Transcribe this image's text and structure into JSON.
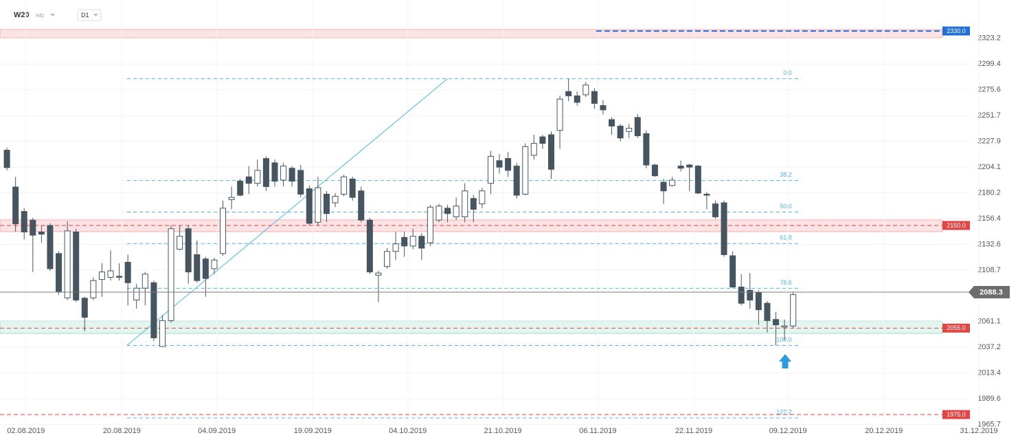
{
  "header": {
    "symbol": "W20",
    "market": "IND",
    "interval": "D1"
  },
  "chart_data": {
    "type": "candlestick",
    "candles": {
      "open": [
        2219.7,
        2185.6,
        2163,
        2155,
        2144,
        2150,
        2124,
        2083,
        2144,
        2082.7,
        2083,
        2100,
        2102,
        2103,
        2116,
        2081,
        2092,
        2097,
        2038,
        2062,
        2128,
        2147,
        2123,
        2119,
        2110,
        2124,
        2174,
        2191,
        2195,
        2189,
        2212,
        2208,
        2192,
        2203,
        2201,
        2184,
        2153,
        2179,
        2171,
        2179,
        2193,
        2182,
        2155,
        2104,
        2112,
        2126,
        2139,
        2131,
        2140,
        2134,
        2155,
        2166,
        2158,
        2158,
        2175,
        2170,
        2189,
        2210,
        2212,
        2205,
        2179,
        2215,
        2232,
        2234,
        2238,
        2274,
        2270,
        2271,
        2274,
        2261,
        2248,
        2242,
        2237,
        2250,
        2235,
        2206,
        2190,
        2187,
        2205,
        2206,
        2205,
        2179,
        2170,
        2171,
        2122,
        2093,
        2090,
        2088,
        2078,
        2063,
        2056,
        2057
      ],
      "high": [
        2222,
        2195,
        2166,
        2157,
        2150,
        2152,
        2126,
        2154,
        2147,
        2084,
        2102,
        2115,
        2127,
        2115,
        2123,
        2096,
        2107,
        2099,
        2067,
        2150,
        2150,
        2150,
        2136,
        2121,
        2120,
        2173,
        2186,
        2193,
        2205,
        2211,
        2214,
        2211,
        2208,
        2205,
        2206,
        2187,
        2195,
        2182,
        2180,
        2197,
        2195,
        2186,
        2157,
        2108,
        2129,
        2144,
        2144,
        2147,
        2143,
        2169,
        2170,
        2169,
        2176,
        2189,
        2178,
        2185,
        2219,
        2216,
        2218,
        2208,
        2226,
        2234,
        2234,
        2237,
        2270,
        2286,
        2274,
        2283,
        2277,
        2266,
        2250,
        2244,
        2244,
        2253,
        2238,
        2207,
        2193,
        2195,
        2210,
        2207,
        2206,
        2181,
        2173,
        2173,
        2126,
        2105,
        2106,
        2090,
        2080,
        2070,
        2063,
        2088
      ],
      "low": [
        2201,
        2144,
        2137,
        2107,
        2134,
        2108,
        2086,
        2081,
        2079,
        2052,
        2081,
        2084,
        2099,
        2099,
        2076,
        2073,
        2076,
        2043,
        2038,
        2060,
        2127,
        2096,
        2097,
        2084,
        2105,
        2122,
        2165,
        2177,
        2179,
        2186,
        2182,
        2186,
        2186,
        2186,
        2176,
        2150,
        2150,
        2153,
        2167,
        2177,
        2173,
        2153,
        2105,
        2079,
        2110,
        2118,
        2121,
        2128,
        2118,
        2131,
        2153,
        2153,
        2155,
        2153,
        2153,
        2166,
        2179,
        2198,
        2195,
        2175,
        2178,
        2211,
        2221,
        2193,
        2221,
        2265,
        2261,
        2269,
        2258,
        2253,
        2234,
        2228,
        2231,
        2231,
        2203,
        2195,
        2170,
        2186,
        2200,
        2182,
        2179,
        2165,
        2156,
        2121,
        2092,
        2076,
        2073,
        2058,
        2051,
        2039,
        2044,
        2055
      ],
      "close": [
        2203.6,
        2151.5,
        2144,
        2141,
        2142,
        2110,
        2089,
        2145,
        2081,
        2065,
        2099,
        2107,
        2108,
        2102,
        2097,
        2092,
        2105,
        2046,
        2062,
        2147,
        2140,
        2107,
        2099,
        2101,
        2118,
        2166,
        2176,
        2178,
        2189,
        2201,
        2186,
        2191,
        2205,
        2191,
        2179,
        2152,
        2185,
        2161,
        2177,
        2195,
        2176,
        2155,
        2107,
        2106,
        2126,
        2133,
        2131,
        2140,
        2129,
        2167,
        2168,
        2161,
        2168,
        2182,
        2165,
        2182,
        2214,
        2204,
        2201,
        2178,
        2223,
        2226,
        2226,
        2202,
        2267,
        2270,
        2264,
        2280,
        2263,
        2257,
        2242,
        2231,
        2240,
        2233,
        2206,
        2196,
        2182,
        2192,
        2203,
        2204,
        2180,
        2178,
        2158,
        2123,
        2093,
        2078,
        2081,
        2072,
        2062,
        2058,
        2057,
        2086
      ]
    },
    "up_color": "#ffffff",
    "down_color": "#46555f",
    "outline_color": "#46555f",
    "xlim": [
      -0.8,
      111.3
    ],
    "xticks": [
      {
        "value": 2.2,
        "label": "02.08.2019"
      },
      {
        "value": 13.3,
        "label": "20.08.2019"
      },
      {
        "value": 24.3,
        "label": "04.09.2019"
      },
      {
        "value": 35.4,
        "label": "19.09.2019"
      },
      {
        "value": 46.4,
        "label": "04.10.2019"
      },
      {
        "value": 57.4,
        "label": "21.10.2019"
      },
      {
        "value": 68.4,
        "label": "06.11.2019"
      },
      {
        "value": 79.5,
        "label": "22.11.2019"
      },
      {
        "value": 90.4,
        "label": "09.12.2019"
      },
      {
        "value": 101.5,
        "label": "20.12.2019"
      },
      {
        "value": 112.5,
        "label": "31.12.2019"
      }
    ],
    "ylim": [
      1965.5,
      2358.7
    ],
    "yticks": [
      2323.2,
      2299.4,
      2275.6,
      2251.7,
      2227.9,
      2204.1,
      2180.2,
      2156.4,
      2132.6,
      2108.7,
      2061.1,
      2037.2,
      2013.4,
      1989.6,
      1965.7
    ],
    "grid": true,
    "zones": [
      {
        "from": 2323.7,
        "to": 2331.4,
        "color": "#fde3e3",
        "border": "#f0a0a0"
      },
      {
        "from": 2144.3,
        "to": 2155.1,
        "color": "#fde3e3",
        "border": "#f0a0a0"
      },
      {
        "from": 2050.1,
        "to": 2061.5,
        "color": "#e2f5ee",
        "border": "#8fd3bb"
      }
    ],
    "levels": [
      {
        "value": 2330,
        "label": "2330.0",
        "color": "#1f6fd6",
        "from_index": 68.2
      },
      {
        "value": 2150,
        "label": "2150.0",
        "color": "#e04646"
      },
      {
        "value": 2055,
        "label": "2055.0",
        "color": "#e04646"
      },
      {
        "value": 1975,
        "label": "1975.0",
        "color": "#e04646"
      }
    ],
    "current_price": 2088.3,
    "fibonacci": {
      "high": 2285.9,
      "low": 2039.0,
      "start_index": 13.9,
      "end_index": 91.8,
      "color": "#4fb3e0",
      "levels": [
        {
          "value": 0,
          "label": "0.0"
        },
        38.2,
        {
          "value": 50,
          "label": "50.0"
        },
        61.8,
        78.6,
        {
          "value": 100,
          "label": "100.0"
        },
        127.2
      ]
    },
    "trendline": {
      "x": [
        13.9,
        51.0
      ],
      "y": [
        2039.0,
        2285.9
      ],
      "color": "#4fb3e0"
    }
  }
}
